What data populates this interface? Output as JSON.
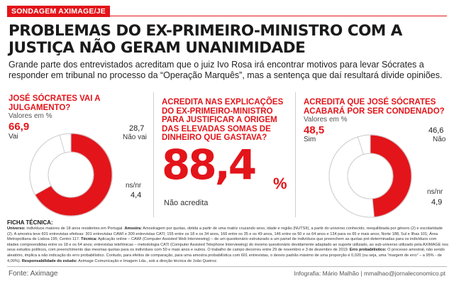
{
  "tag": "SONDAGEM AXIMAGE/JE",
  "headline": "PROBLEMAS DO EX-PRIMEIRO-MINISTRO COM A JUSTIÇA NÃO GERAM UNANIMIDADE",
  "lede": "Grande parte dos entrevistados acreditam que o juiz Ivo Rosa irá encontrar motivos para levar Sócrates a responder em tribunal no processo da “Operação Marquês”, mas a sentença que daí resultará divide opiniões.",
  "colors": {
    "accent": "#e3141a",
    "neutral": "#ffffff",
    "other": "#ffffff",
    "outline": "#d0d0d0"
  },
  "chart_data": [
    {
      "type": "pie",
      "style": "donut",
      "title": "JOSÉ SÓCRATES VAI A JULGAMENTO?",
      "subtitle": "Valores em %",
      "slices": [
        {
          "label": "Vai",
          "value": 66.9,
          "value_text": "66,9"
        },
        {
          "label": "Não vai",
          "value": 28.7,
          "value_text": "28,7"
        },
        {
          "label": "ns/nr",
          "value": 4.4,
          "value_text": "4,4"
        }
      ]
    },
    {
      "type": "pie",
      "style": "donut",
      "title": "ACREDITA QUE JOSÉ SÓCRATES ACABARÁ POR SER CONDENADO?",
      "subtitle": "Valores em %",
      "slices": [
        {
          "label": "Sim",
          "value": 48.5,
          "value_text": "48,5"
        },
        {
          "label": "Não",
          "value": 46.6,
          "value_text": "46,6"
        },
        {
          "label": "ns/nr",
          "value": 4.9,
          "value_text": "4,9"
        }
      ]
    },
    {
      "type": "table",
      "title": "ACREDITA NAS EXPLICAÇÕES DO EX-PRIMEIRO-MINISTRO PARA JUSTIFICAR A ORIGEM DAS ELEVADAS SOMAS DE DINHEIRO QUE GASTAVA?",
      "value": 88.4,
      "value_text": "88,4",
      "unit": "%",
      "label": "Não acredita"
    }
  ],
  "ficha": {
    "title": "FICHA TÉCNICA:",
    "universo_label": "Universo:",
    "universo": "indivíduos maiores de 18 anos residentes em Portugal.",
    "amostra_label": "Amostra:",
    "amostra": "Amostragem por quotas, obtida a partir de uma matriz cruzando sexo, idade e região (NUTSII), a partir do universo conhecido, reequilibrada por género (2) e escolaridade (2). A amostra teve 601 entrevistas efetivas: 301 entrevistas CAWI e 300 entrevistas CATI; 155 entre os 18 e os 34 anos, 166 entre os 35 e os 49 anos, 146 entre os 50 e os 64 anos e 134 para os 65 e mais anos; Norte 188, Sul e Ilhas 101; Área Metropolitana de Lisboa 195; Centro 117.",
    "tecnica_label": "Técnica:",
    "tecnica": "Aplicação online – CAWI (Computer Assisted Web Interviewing) – de um questionário estruturado a um painel de indivíduos que preenchem as quotas pré-determinadas para os indivíduos com idades compreendidas entre os 18 e os 64 anos; entrevistas telefónicas – metodologia CATI (Computer Assisted Telephone Interviewing) do mesmo questionário devidamente adaptado ao suporte utilizado, ao sub-universo utilizado pela AXIMAGE nos seus estudos políticos, com preenchimento das mesmas quotas para os indivíduos com 50 e mais anos e outros. O trabalho de campo decorreu entre 29 de novembro e 3 de dezembro de 2019.",
    "erro_label": "Erro probabilístico:",
    "erro": "O processo amostral, não sendo aleatório, implica a não indicação do erro probabilístico. Contudo, para efeitos de comparação, para uma amostra probabilística com 601 entrevistas, o desvio padrão máximo de uma proporção é 0,020 (ou seja, uma “margem de erro” – a 95% - de 4,00%).",
    "resp_label": "Responsabilidade do estudo:",
    "resp": "Aximage Comunicação e Imagem Lda., sob a direção técnica de João Queiroz."
  },
  "footer": {
    "source": "Fonte: Aximage",
    "credit": "Infografia: Mário Malhão  |  mmalhao@jornaleconomico.pt"
  }
}
